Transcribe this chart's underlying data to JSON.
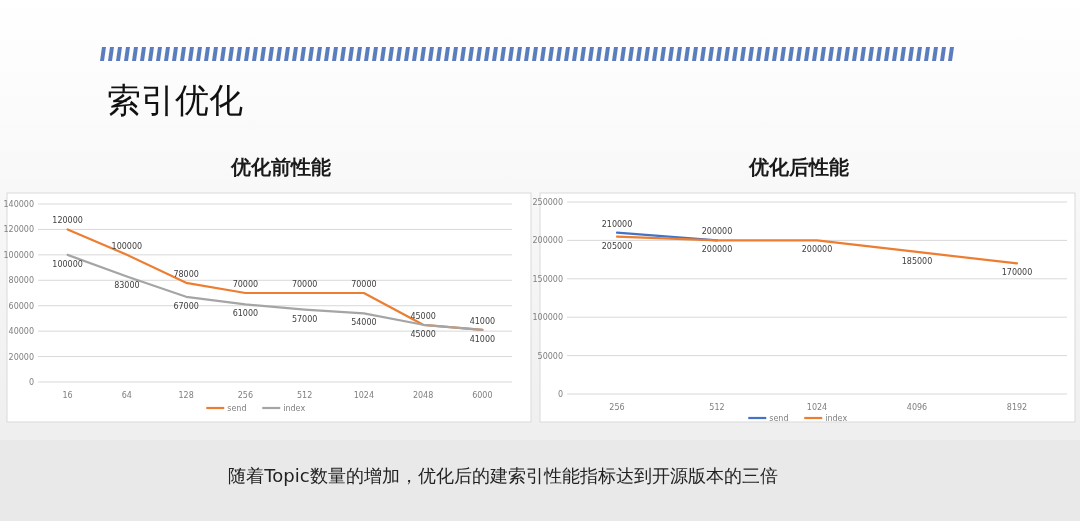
{
  "chart_data": [
    {
      "type": "line",
      "title": "优化前性能",
      "categories": [
        "16",
        "64",
        "128",
        "256",
        "512",
        "1024",
        "2048",
        "6000"
      ],
      "series": [
        {
          "name": "send",
          "color": "#ed7d31",
          "values": [
            120000,
            100000,
            78000,
            70000,
            70000,
            70000,
            45000,
            41000
          ]
        },
        {
          "name": "index",
          "color": "#a5a5a5",
          "values": [
            100000,
            83000,
            67000,
            61000,
            57000,
            54000,
            45000,
            41000
          ]
        }
      ],
      "ylim": [
        0,
        140000
      ],
      "yticks": [
        0,
        20000,
        40000,
        60000,
        80000,
        100000,
        120000,
        140000
      ],
      "grid": "y",
      "legend": "bottom",
      "data_labels": true,
      "annotations": [
        "索引优化"
      ]
    },
    {
      "type": "line",
      "title": "优化后性能",
      "categories": [
        "256",
        "512",
        "1024",
        "4096",
        "8192"
      ],
      "series": [
        {
          "name": "send",
          "color": "#4472c4",
          "values": [
            210000,
            200000,
            null,
            null,
            null
          ]
        },
        {
          "name": "index",
          "color": "#ed7d31",
          "values": [
            205000,
            200000,
            200000,
            185000,
            170000
          ]
        }
      ],
      "ylim": [
        0,
        250000
      ],
      "yticks": [
        0,
        50000,
        100000,
        150000,
        200000,
        250000
      ],
      "grid": "y",
      "legend": "bottom",
      "data_labels": true,
      "annotations": [
        "随着Topic数量的增加，优化后的建索引性能指标达到开源版本的三倍"
      ]
    }
  ]
}
